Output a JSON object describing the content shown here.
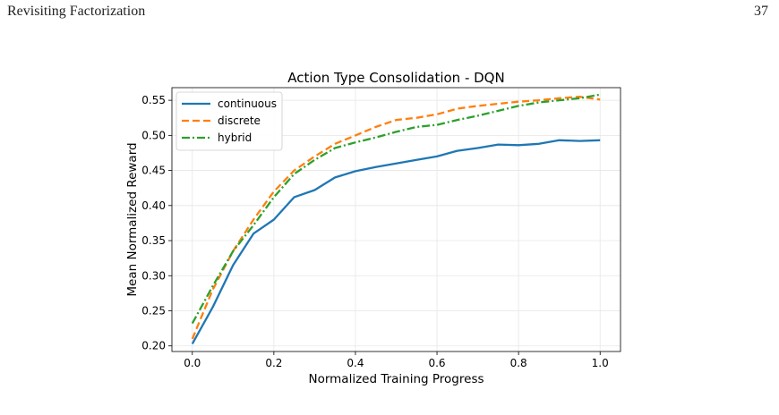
{
  "header": {
    "running_head": "Revisiting Factorization",
    "page_number": "37"
  },
  "chart_data": {
    "type": "line",
    "title": "Action Type Consolidation - DQN",
    "xlabel": "Normalized Training Progress",
    "ylabel": "Mean Normalized Reward",
    "xlim": [
      -0.05,
      1.05
    ],
    "ylim": [
      0.192,
      0.568
    ],
    "xticks": [
      0.0,
      0.2,
      0.4,
      0.6,
      0.8,
      1.0
    ],
    "xtick_labels": [
      "0.0",
      "0.2",
      "0.4",
      "0.6",
      "0.8",
      "1.0"
    ],
    "yticks": [
      0.2,
      0.25,
      0.3,
      0.35,
      0.4,
      0.45,
      0.5,
      0.55
    ],
    "ytick_labels": [
      "0.20",
      "0.25",
      "0.30",
      "0.35",
      "0.40",
      "0.45",
      "0.50",
      "0.55"
    ],
    "grid": true,
    "legend_position": "top-left",
    "x": [
      0.0,
      0.05,
      0.1,
      0.15,
      0.2,
      0.25,
      0.3,
      0.35,
      0.4,
      0.45,
      0.5,
      0.55,
      0.6,
      0.65,
      0.7,
      0.75,
      0.8,
      0.85,
      0.9,
      0.95,
      1.0
    ],
    "series": [
      {
        "name": "continuous",
        "color": "#1f77b4",
        "style": "solid",
        "values": [
          0.203,
          0.255,
          0.315,
          0.36,
          0.38,
          0.412,
          0.422,
          0.44,
          0.449,
          0.455,
          0.46,
          0.465,
          0.47,
          0.478,
          0.482,
          0.487,
          0.486,
          0.488,
          0.493,
          0.492,
          0.493
        ]
      },
      {
        "name": "discrete",
        "color": "#ff7f0e",
        "style": "dashed",
        "values": [
          0.21,
          0.28,
          0.335,
          0.38,
          0.42,
          0.45,
          0.47,
          0.488,
          0.5,
          0.512,
          0.522,
          0.525,
          0.53,
          0.538,
          0.542,
          0.545,
          0.548,
          0.55,
          0.553,
          0.555,
          0.551
        ]
      },
      {
        "name": "hybrid",
        "color": "#2ca02c",
        "style": "dash-dot",
        "values": [
          0.232,
          0.285,
          0.335,
          0.372,
          0.412,
          0.445,
          0.465,
          0.482,
          0.49,
          0.497,
          0.505,
          0.512,
          0.515,
          0.522,
          0.528,
          0.535,
          0.542,
          0.547,
          0.55,
          0.553,
          0.558
        ]
      }
    ]
  }
}
